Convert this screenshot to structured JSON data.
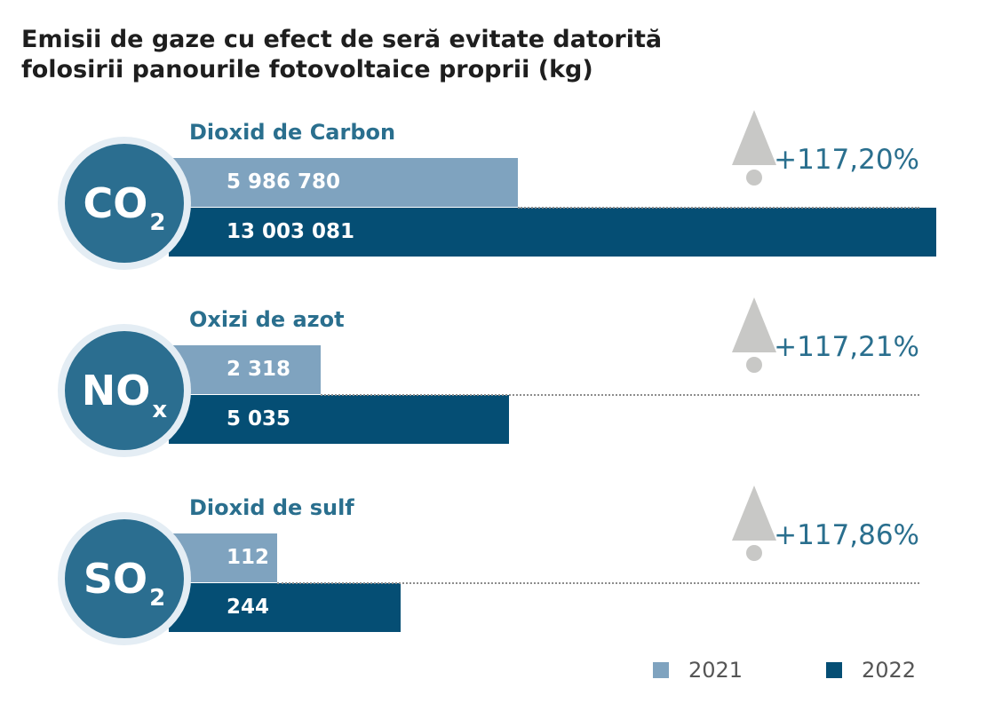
{
  "chart_data": {
    "type": "bar",
    "title_lines": [
      "Emisii de gaze cu efect de seră evitate datorită",
      "folosirii panourile fotovoltaice proprii (kg)"
    ],
    "series": [
      {
        "name": "2021",
        "color": "#7fa3bf"
      },
      {
        "name": "2022",
        "color": "#054e74"
      }
    ],
    "groups": [
      {
        "label": "Dioxid de Carbon",
        "formula": "CO",
        "formula_sub": "2",
        "values": [
          5986780,
          13003081
        ],
        "value_labels": [
          "5 986 780",
          "13 003 081"
        ],
        "change": "+117,20%"
      },
      {
        "label": "Oxizi de azot",
        "formula": "NO",
        "formula_sub": "x",
        "values": [
          2318,
          5035
        ],
        "value_labels": [
          "2 318",
          "5 035"
        ],
        "change": "+117,21%"
      },
      {
        "label": "Dioxid de sulf",
        "formula": "SO",
        "formula_sub": "2",
        "values": [
          112,
          244
        ],
        "value_labels": [
          "112",
          "244"
        ],
        "change": "+117,86%"
      }
    ],
    "legend": [
      "2021",
      "2022"
    ],
    "legend_position": "bottom-right",
    "grid": false,
    "icon": "up-arrow-icon"
  }
}
